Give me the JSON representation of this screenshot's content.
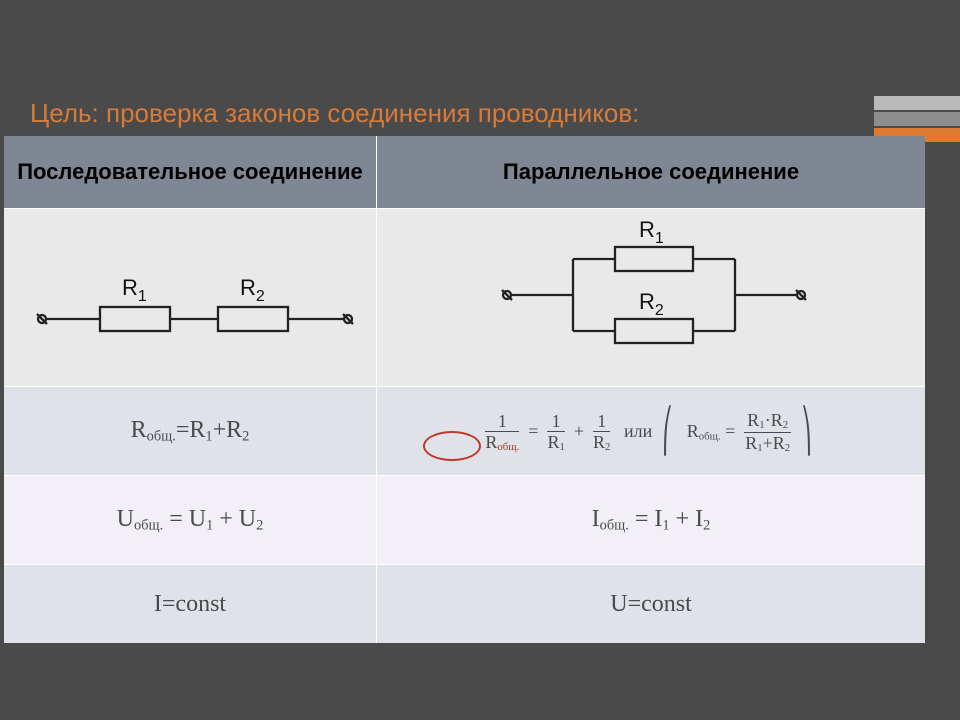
{
  "title": {
    "text": "Цель: проверка законов соединения проводников:",
    "color": "#d67b3a"
  },
  "accent_colors": [
    "#b9b9b9",
    "#8e8e8e",
    "#e07a2e"
  ],
  "headers": {
    "left": "Последовательное соединение",
    "right": "Параллельное соединение"
  },
  "rows": {
    "diagram_h": 172,
    "r_row_h": 88,
    "u_row_h": 88,
    "c_row_h": 78
  },
  "series": {
    "diagram": {
      "labels": {
        "R1": "R",
        "R1s": "1",
        "R2": "R",
        "R2s": "2"
      },
      "stroke": "#222",
      "stroke_w": 2.3
    },
    "formulas": {
      "R": "R<sub>общ.</sub>=R<sub>1</sub>+R<sub>2</sub>",
      "U": "U<sub>общ.</sub> = U<sub>1</sub> + U<sub>2</sub>",
      "C": "I=const"
    }
  },
  "parallel": {
    "diagram": {
      "labels": {
        "R1": "R",
        "R1s": "1",
        "R2": "R",
        "R2s": "2"
      },
      "stroke": "#222",
      "stroke_w": 2.3
    },
    "formulas": {
      "R_or": "или",
      "U": "I<sub>общ.</sub> = I<sub>1</sub> + I<sub>2</sub>",
      "C": "U=const"
    }
  },
  "circle": {
    "color": "#c0392b",
    "w": 54,
    "h": 26
  }
}
